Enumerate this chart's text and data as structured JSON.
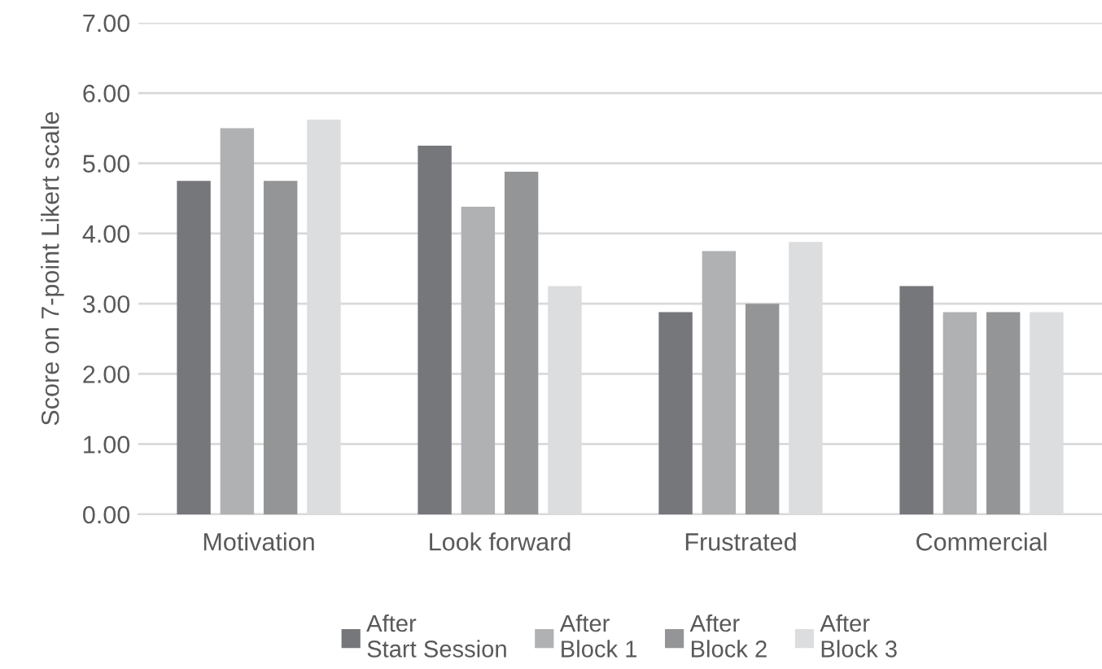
{
  "chart_data": {
    "type": "bar",
    "ylabel": "Score on 7-point Likert scale",
    "categories": [
      "Motivation",
      "Look forward",
      "Frustrated",
      "Commercial"
    ],
    "series": [
      {
        "name": "After\nStart Session",
        "color": "#76777b",
        "values": [
          4.75,
          5.25,
          2.88,
          3.25
        ]
      },
      {
        "name": "After\nBlock 1",
        "color": "#afb1b3",
        "values": [
          5.5,
          4.38,
          3.75,
          2.88
        ]
      },
      {
        "name": "After\nBlock 2",
        "color": "#949597",
        "values": [
          4.75,
          4.88,
          3.0,
          2.88
        ]
      },
      {
        "name": "After\nBlock 3",
        "color": "#dcdddf",
        "values": [
          5.62,
          3.25,
          3.88,
          2.88
        ]
      }
    ],
    "ylim": [
      0,
      7
    ],
    "yticks": [
      {
        "value": 0,
        "label": "0.00"
      },
      {
        "value": 1,
        "label": "1.00"
      },
      {
        "value": 2,
        "label": "2.00"
      },
      {
        "value": 3,
        "label": "3.00"
      },
      {
        "value": 4,
        "label": "4.00"
      },
      {
        "value": 5,
        "label": "5.00"
      },
      {
        "value": 6,
        "label": "6.00"
      },
      {
        "value": 7,
        "label": "7.00"
      }
    ],
    "grid": "y",
    "legend": "bottom"
  }
}
